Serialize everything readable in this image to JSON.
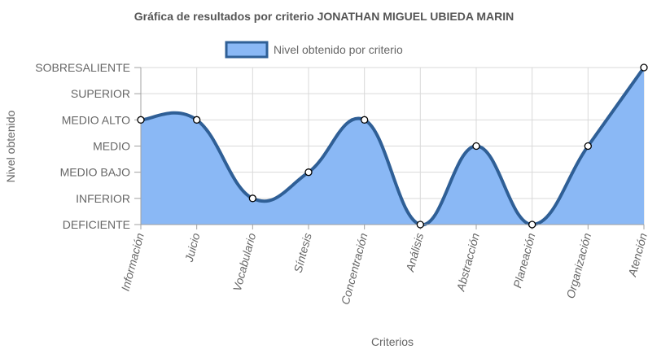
{
  "chart_data": {
    "type": "area",
    "title": "Gráfica de resultados por criterio JONATHAN MIGUEL UBIEDA MARIN",
    "xlabel": "Criterios",
    "ylabel": "Nivel obtenido",
    "categories": [
      "Información",
      "Juicio",
      "Vocabulario",
      "Síntesis",
      "Concentración",
      "Análisis",
      "Abstracción",
      "Planeación",
      "Organización",
      "Atención"
    ],
    "y_levels": [
      "DEFICIENTE",
      "INFERIOR",
      "MEDIO BAJO",
      "MEDIO",
      "MEDIO ALTO",
      "SUPERIOR",
      "SOBRESALIENTE"
    ],
    "series": [
      {
        "name": "Nivel obtenido por criterio",
        "values": [
          "MEDIO ALTO",
          "MEDIO ALTO",
          "INFERIOR",
          "MEDIO BAJO",
          "MEDIO ALTO",
          "DEFICIENTE",
          "MEDIO",
          "DEFICIENTE",
          "MEDIO",
          "SOBRESALIENTE"
        ]
      }
    ],
    "legend_position": "top",
    "grid": true,
    "colors": {
      "fill": "#8ab8f5",
      "line": "#2f5f96",
      "grid": "#d9d9d9",
      "axis": "#a0a0a0",
      "text": "#666666"
    }
  }
}
